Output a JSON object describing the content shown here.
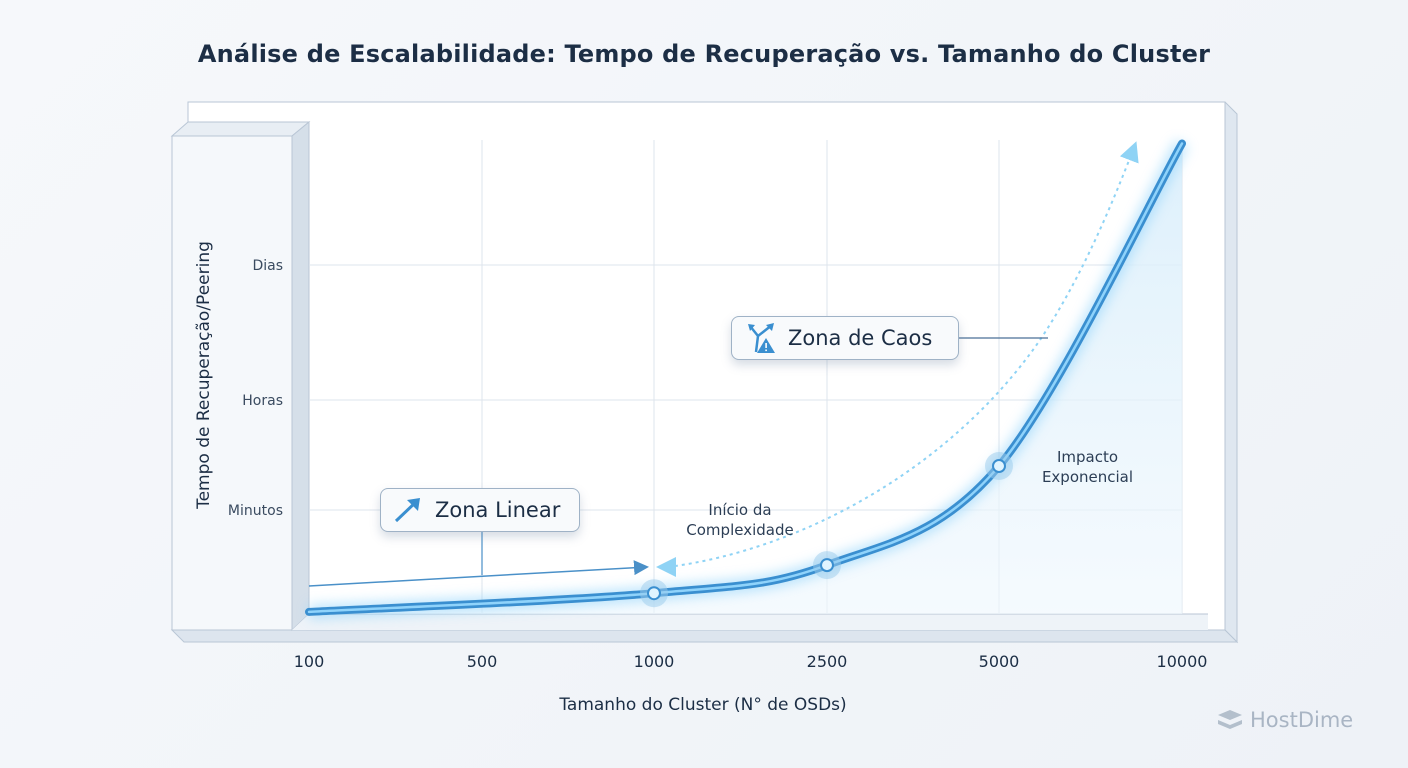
{
  "chart_data": {
    "type": "line",
    "title": "Análise de Escalabilidade: Tempo de Recuperação vs. Tamanho do Cluster",
    "xlabel": "Tamanho do Cluster (N° de OSDs)",
    "ylabel": "Tempo de Recuperação/Peering",
    "x_categories": [
      "100",
      "500",
      "1000",
      "2500",
      "5000",
      "10000"
    ],
    "y_ticks": [
      "Minutos",
      "Horas",
      "Dias"
    ],
    "grid": true,
    "series": [
      {
        "x": [
          "100",
          "1000",
          "2500",
          "5000",
          "10000"
        ],
        "y_level": [
          0.02,
          0.2,
          0.47,
          1.4,
          3.9
        ],
        "highlighted_points": [
          "1000",
          "2500",
          "5000"
        ],
        "color": "#3a8fd0"
      }
    ],
    "annotations": {
      "zona_linear": "Zona Linear",
      "zona_caos": "Zona de Caos",
      "inicio_l1": "Início da",
      "inicio_l2": "Complexidade",
      "impacto_l1": "Impacto",
      "impacto_l2": "Exponencial"
    },
    "colors": {
      "line": "#3a8fd0",
      "line_light": "#8fd3fb",
      "arrow": "#8fd3f5",
      "text": "#1c2e45"
    }
  },
  "brand": {
    "name": "HostDime"
  }
}
